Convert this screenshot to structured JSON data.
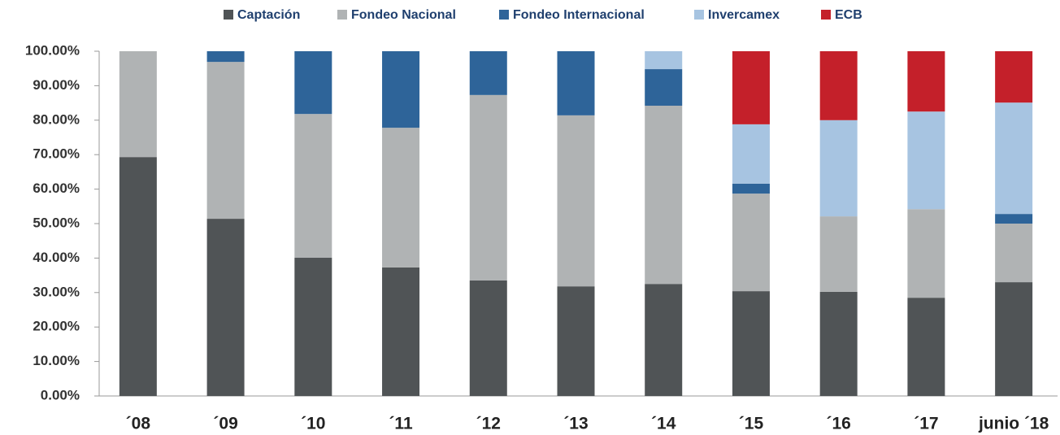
{
  "chart_data": {
    "type": "stacked_bar",
    "categories": [
      "´08",
      "´09",
      "´10",
      "´11",
      "´12",
      "´13",
      "´14",
      "´15",
      "´16",
      "´17",
      "junio ´18"
    ],
    "series": [
      {
        "name": "Captación",
        "color": "#505456",
        "values": [
          69.3,
          51.4,
          40.1,
          37.3,
          33.5,
          31.8,
          32.5,
          30.4,
          30.2,
          28.5,
          33.0
        ]
      },
      {
        "name": "Fondeo Nacional",
        "color": "#b0b3b4",
        "values": [
          30.7,
          45.5,
          41.7,
          40.5,
          53.8,
          49.6,
          51.7,
          28.3,
          21.9,
          25.7,
          17.0
        ]
      },
      {
        "name": "Fondeo Internacional",
        "color": "#2e6499",
        "values": [
          0,
          3.1,
          18.2,
          22.2,
          12.7,
          18.6,
          10.6,
          2.9,
          0,
          0,
          2.8
        ]
      },
      {
        "name": "Invercamex",
        "color": "#a7c4e1",
        "values": [
          0,
          0,
          0,
          0,
          0,
          0,
          5.2,
          17.2,
          27.9,
          28.3,
          32.3
        ]
      },
      {
        "name": "ECB",
        "color": "#c4202a",
        "values": [
          0,
          0,
          0,
          0,
          0,
          0,
          0,
          21.2,
          20.0,
          17.5,
          14.9
        ]
      }
    ],
    "ylim": [
      0,
      100
    ],
    "yticks": [
      {
        "value": 0,
        "label": "0.00%"
      },
      {
        "value": 10,
        "label": "10.00%"
      },
      {
        "value": 20,
        "label": "20.00%"
      },
      {
        "value": 30,
        "label": "30.00%"
      },
      {
        "value": 40,
        "label": "40.00%"
      },
      {
        "value": 50,
        "label": "50.00%"
      },
      {
        "value": 60,
        "label": "60.00%"
      },
      {
        "value": 70,
        "label": "70.00%"
      },
      {
        "value": 80,
        "label": "80.00%"
      },
      {
        "value": 90,
        "label": "90.00%"
      },
      {
        "value": 100,
        "label": "100.00%"
      }
    ],
    "legend": "top"
  }
}
